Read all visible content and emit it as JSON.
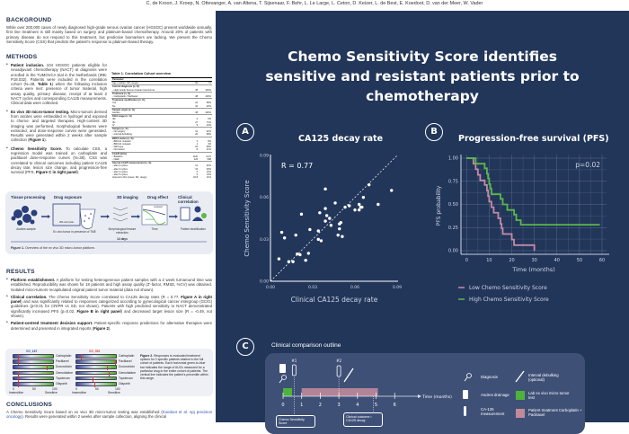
{
  "authors": "C. de Kroon, J. Kroep, N. Ottevanger, A. van Altena, T. Sijsenaar, F. Behr, L. Le Large, L. Ceton, D. Keizer, L. de Best, E. Koedoot, D. van der Meer, W. Vader",
  "title": {
    "line1": "Chemo Sensitivity Score identifies",
    "line2": "sensitive and resistant patients prior to chemotherapy"
  },
  "background": {
    "heading": "BACKGROUND",
    "text": "While over 200,000 cases of newly diagnosed high-grade serous ovarian cancer (HGSOC) present worldwide annually, first line treatment is still mainly based on surgery and platinum-based chemotherapy. Around 20% of patients with primary disease do not respond to this treatment, but predictive biomarkers are lacking. We present the Chemo Sensitivity Score (CSS) that predicts the patient's response to platinum-based therapy."
  },
  "methods": {
    "heading": "METHODS",
    "items": [
      {
        "title": "Patient inclusion.",
        "text": " 104 HGSOC patients eligible for neoadjuvant chemotherapy (NACT) at diagnosis were enrolled in the TUMOVCA trial in the Netherlands (IRB: P18.032). Patients were included in the correlation cohort (N=38, ",
        "ref": "Table 1",
        "tail": ") when the following inclusion criteria were met: presence of tumor material, high assay quality, primary disease, receipt of at least 2 NACT cycles and corresponding CA125 measurements. Clinical data were collected."
      },
      {
        "title": "Ex vivo 3D micro-tumor testing.",
        "text": " Micro-tumors derived from ascites were embedded in hydrogel and exposed to chemo- and targeted therapies. High-content 3D imaging was performed, morphological features were extracted, and dose-response curves were generated. Results were generated within 2 weeks after sample collection (",
        "ref": "Figure 1",
        "tail": ")."
      },
      {
        "title": "Chemo Sensitivity Score.",
        "text": " To calculate CSS, a regression model was trained on carboplatin and paclitaxel dose-response curves (N=38). CSS was correlated to clinical outcomes including patient CA125 decay rate, lesion size change, and progression-free survival (PFS, ",
        "ref": "Figure C in right panel",
        "tail": ")."
      }
    ]
  },
  "table1": {
    "caption": "Table 1. Correlation Cohort overview",
    "rows": [
      [
        "Parameter",
        "",
        ""
      ],
      [
        "Age (median, SD, range)",
        "60",
        "7.6"
      ],
      [
        "Current diagnosis (n, %)",
        "",
        ""
      ],
      [
        "- High Grade Serous Ovarian Carcinoma",
        "38",
        "100%"
      ],
      [
        "Treatment (n, %)",
        "",
        ""
      ],
      [
        "- Carboplatin / Paclitaxel",
        "38",
        "100%"
      ],
      [
        "Treatment modification (n, %)",
        "",
        ""
      ],
      [
        "Yes",
        "22",
        "58%"
      ],
      [
        "No",
        "16",
        "42%"
      ],
      [
        "Sample origin (n, %)",
        "",
        ""
      ],
      [
        "Ascites",
        "38",
        "100%"
      ],
      [
        "FIGO stage (n, %)",
        "",
        ""
      ],
      [
        "IIIb",
        "2",
        "5%"
      ],
      [
        "IIIc",
        "27",
        "71%"
      ],
      [
        "IV",
        "9",
        "24%"
      ],
      [
        "Surgery (n, %)",
        "",
        ""
      ],
      [
        "- No surgery",
        "12",
        "32%"
      ],
      [
        "- Interval debulking",
        "26",
        "68%"
      ],
      [
        "BRCA status (n, %)",
        "",
        ""
      ],
      [
        "- BRCA1 mutated",
        "3",
        "8%"
      ],
      [
        "- BRCA2 mutated",
        "1",
        "3%"
      ],
      [
        "- Wild type",
        "26",
        "68%"
      ],
      [
        "- Not tested",
        "8",
        "21%"
      ],
      [
        "CA125 (kU/L)",
        "",
        ""
      ],
      [
        "- Baseline",
        "1120",
        "2172"
      ],
      [
        "- Nadir",
        "126",
        "508"
      ],
      [
        "Interval CA125 measurement (n, %)",
        "",
        ""
      ],
      [
        "- after 2 cycles",
        "12",
        "32%"
      ],
      [
        "- after 3 cycles",
        "15",
        "39%"
      ],
      [
        "- after 4 cycles",
        "6",
        "16%"
      ],
      [
        "- after 5 cycles",
        "5",
        "13%"
      ],
      [
        "Interval to first (mean, SD, range)",
        "32.8",
        "16.9"
      ]
    ]
  },
  "figure1": {
    "steps": [
      "Tissue processing",
      "Drug exposure",
      "3D imaging",
      "Drug effect",
      "Clinical correlation"
    ],
    "sub": [
      "Ascites sample",
      "Ex vivo tumor in presence of TME",
      "384-well plate",
      "Morphological feature extraction",
      "Time",
      "Patient stratification",
      "resistant",
      "sensitive"
    ],
    "days": "14 days",
    "caption_bold": "Figure 1.",
    "caption": " Overview of the ex vivo 3D micro-tumor platform."
  },
  "results": {
    "heading": "RESULTS",
    "r1": {
      "title": "Platform establishment.",
      "text": " A platform for testing heterogeneous patient samples with a 2 week turnaround time was established. Reproducibility was shown for 18 patients and high assay quality (Z'-factor, RMSE, %CV) was obtained. Isolated micro-tumors recapitulated original patient tumor material (data not shown)."
    },
    "r2": {
      "title": "Clinical correlation.",
      "a": " The Chemo Sensitivity Score correlated to CA125 decay rates (R = 0.77, ",
      "refA": "Figure A in right panel",
      "b": ") and was significantly related to responses categorized according to gynecological cancer intergroup (GCIG) guidelines (p<0.01 for CR/PR vs SD, not shown). Patients with high predicted sensitivity to NACT demonstrated significantly increased PFS (p=0.02, ",
      "refB": "Figure B in right panel",
      "c": ") and decreased target lesion size (R = -0.49, not shown)."
    },
    "r3": {
      "title": "Patient-centred treatment decision support.",
      "text": " Patient-specific response predictions for alternative therapies were determined and presented in integrated reports (",
      "ref": "Figure 2",
      "tail": ")."
    }
  },
  "figure2": {
    "patients": [
      {
        "id": "VO_167",
        "color": "#3a4a9a",
        "markers": [
          0.12,
          0.1,
          0.82,
          0.1,
          0.1,
          0.12
        ]
      },
      {
        "id": "VO_091",
        "color": "#d9452b",
        "markers": [
          0.1,
          0.95,
          0.75,
          0.8,
          0.4,
          0.45
        ]
      }
    ],
    "drugs": [
      "Carboplatin",
      "Paclitaxel",
      "Doxorubicin",
      "Gemcitabine",
      "Topotecan",
      "Olaparib"
    ],
    "ticks": [
      "0",
      "50",
      "100"
    ],
    "insensitive": "Insensitive",
    "sensitive": "Sensitive",
    "caption_bold": "Figure 2.",
    "caption": " Responses to evaluated treatment options for 2 specific patients relative to the full cohort of patients. Each horizontal green-to-blue bar indicates the range of AUCs measured for a particular drug in the entire cohort of patients. The vertical line indicates the patient's percentile within this range."
  },
  "conclusions": {
    "heading": "CONCLUSIONS",
    "a": "A Chemo Sensitivity Score based on ex vivo 3D micro-tumor testing was established (",
    "link": "Koedoot et al. npj precision oncology",
    "b": "). Results were generated within 2 weeks after sample collection, aligning the clinical"
  },
  "panelA": {
    "letter": "A",
    "title": "CA125 decay rate",
    "annotation": "R = 0.77"
  },
  "panelB": {
    "letter": "B",
    "title": "Progression-free survival (PFS)",
    "annotation": "p=0.02"
  },
  "chart_data": [
    {
      "type": "scatter",
      "title": "CA125 decay rate",
      "xlabel": "Clinical CA125 decay rate",
      "ylabel": "Chemo Sensitivity Score",
      "xlim": [
        0,
        0.09
      ],
      "ylim": [
        0,
        0.09
      ],
      "xticks": [
        "0.00",
        "0.03",
        "0.06",
        "0.09"
      ],
      "yticks": [
        "0.00",
        "0.03",
        "0.06",
        "0.09"
      ],
      "trendline": "y=x dashed",
      "annotation": "R = 0.77",
      "points": [
        [
          0.006,
          0.016
        ],
        [
          0.008,
          0.035
        ],
        [
          0.01,
          0.031
        ],
        [
          0.013,
          0.014
        ],
        [
          0.016,
          0.014
        ],
        [
          0.018,
          0.033
        ],
        [
          0.019,
          0.0195
        ],
        [
          0.021,
          0.019
        ],
        [
          0.022,
          0.048
        ],
        [
          0.025,
          0.015
        ],
        [
          0.027,
          0.02
        ],
        [
          0.028,
          0.037
        ],
        [
          0.034,
          0.036
        ],
        [
          0.034,
          0.03
        ],
        [
          0.035,
          0.049
        ],
        [
          0.036,
          0.029
        ],
        [
          0.039,
          0.066
        ],
        [
          0.039,
          0.052
        ],
        [
          0.039,
          0.043
        ],
        [
          0.04,
          0.047
        ],
        [
          0.042,
          0.045
        ],
        [
          0.043,
          0.04
        ],
        [
          0.046,
          0.056
        ],
        [
          0.048,
          0.033
        ],
        [
          0.049,
          0.0375
        ],
        [
          0.049,
          0.041
        ],
        [
          0.05,
          0.042
        ],
        [
          0.051,
          0.032
        ],
        [
          0.053,
          0.053
        ],
        [
          0.056,
          0.054
        ],
        [
          0.06,
          0.051
        ],
        [
          0.063,
          0.051
        ],
        [
          0.063,
          0.055
        ],
        [
          0.064,
          0.053
        ],
        [
          0.065,
          0.053
        ],
        [
          0.066,
          0.06
        ],
        [
          0.07,
          0.069
        ],
        [
          0.0765,
          0.055
        ],
        [
          0.086,
          0.065
        ]
      ]
    },
    {
      "type": "line",
      "title": "Progression-free survival (PFS)",
      "xlabel": "Time (months)",
      "ylabel": "PFS probability",
      "xlim": [
        0,
        60
      ],
      "ylim": [
        0,
        1
      ],
      "xticks": [
        "0",
        "10",
        "20",
        "30",
        "40",
        "50",
        "60"
      ],
      "yticks": [
        "0.00",
        "0.25",
        "0.50",
        "0.75",
        "1.00"
      ],
      "grid": true,
      "annotation": "p=0.02",
      "legend": "bottom",
      "series": [
        {
          "name": "Low Chemo Sensitivity Score",
          "color": "#c48aa5",
          "steps": [
            [
              0,
              1
            ],
            [
              3,
              0.94
            ],
            [
              4,
              0.88
            ],
            [
              5,
              0.82
            ],
            [
              6,
              0.76
            ],
            [
              8,
              0.71
            ],
            [
              9,
              0.65
            ],
            [
              9.5,
              0.59
            ],
            [
              10,
              0.53
            ],
            [
              11,
              0.47
            ],
            [
              12,
              0.41
            ],
            [
              14,
              0.35
            ],
            [
              15,
              0.29
            ],
            [
              15.5,
              0.24
            ],
            [
              16,
              0.18
            ],
            [
              20,
              0.12
            ],
            [
              21,
              0.06
            ],
            [
              30,
              0
            ]
          ],
          "end": 30
        },
        {
          "name": "High Chemo Sensitivity Score",
          "color": "#5bb84a",
          "steps": [
            [
              0,
              1
            ],
            [
              4,
              0.94
            ],
            [
              8,
              0.89
            ],
            [
              9,
              0.83
            ],
            [
              9.5,
              0.78
            ],
            [
              10,
              0.72
            ],
            [
              10.5,
              0.67
            ],
            [
              11,
              0.61
            ],
            [
              15,
              0.56
            ],
            [
              16,
              0.5
            ],
            [
              18,
              0.44
            ],
            [
              21,
              0.39
            ],
            [
              22,
              0.33
            ],
            [
              24,
              0.28
            ]
          ],
          "end": 59
        }
      ]
    }
  ],
  "panelC": {
    "letter": "C",
    "title": "Clinical comparison outline",
    "ticks": [
      "0",
      "1",
      "2",
      "3",
      "4",
      "5",
      "6"
    ],
    "axis_label": "Time (months)",
    "marker1": "#1",
    "marker2": "#2",
    "box1": "Chemo Sensitivity Score",
    "box2": "Clinical outcome • CA125 decay",
    "legend": {
      "diagnosis": "Diagnosis",
      "ascites": "Ascites drainage",
      "ca125": "CA-125 measurement",
      "debulking": "Interval debulking (optional)",
      "lab": "Lab ex vivo micro tumor test",
      "treatment": "Patient treatment Carboplatin + Paclitaxel"
    },
    "colors": {
      "lab": "#4db33d",
      "treatment": "#c08a9a"
    }
  }
}
